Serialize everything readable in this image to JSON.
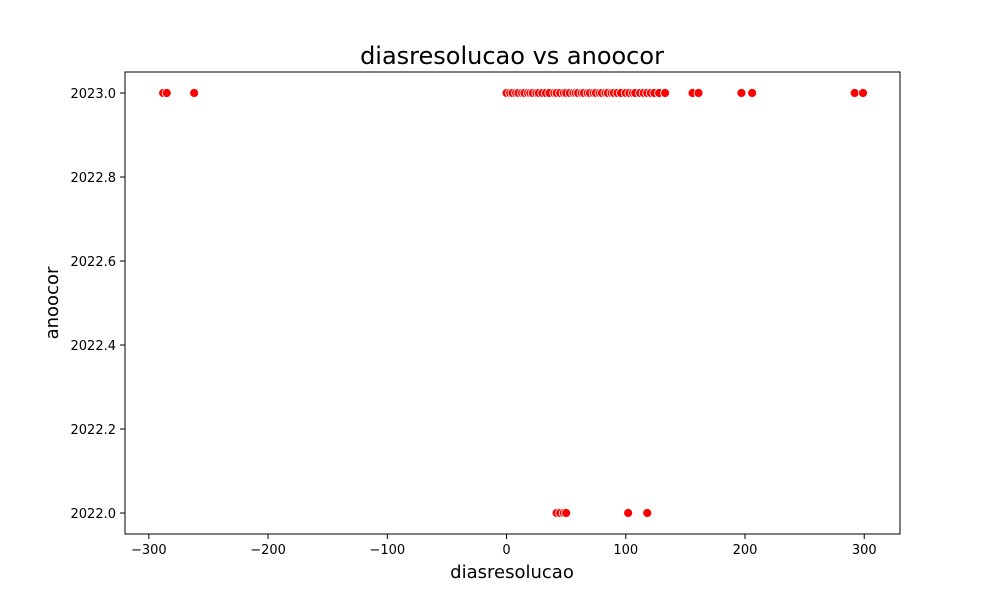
{
  "chart_data": {
    "type": "scatter",
    "title": "diasresolucao vs anoocor",
    "xlabel": "diasresolucao",
    "ylabel": "anoocor",
    "xlim": [
      -320,
      330
    ],
    "ylim": [
      1999.97,
      2023.05
    ],
    "xticks": [
      -300,
      -200,
      -100,
      0,
      100,
      200,
      300
    ],
    "xtick_labels": [
      "−300",
      "−200",
      "−100",
      "0",
      "100",
      "200",
      "300"
    ],
    "yticks": [
      2022.0,
      2022.2,
      2022.4,
      2022.6,
      2022.8,
      2023.0
    ],
    "ytick_labels": [
      "2022.0",
      "2022.2",
      "2022.4",
      "2022.6",
      "2022.8",
      "2023.0"
    ],
    "ylim_display": [
      2021.95,
      2023.05
    ],
    "grid": false,
    "marker_color": "#ff0000",
    "marker_edge": "#ffffff",
    "series": [
      {
        "x": [
          -288,
          -285,
          -262,
          0,
          3,
          5,
          8,
          10,
          13,
          15,
          18,
          20,
          22,
          25,
          27,
          30,
          33,
          36,
          40,
          42,
          45,
          48,
          50,
          53,
          56,
          58,
          60,
          63,
          65,
          68,
          70,
          73,
          75,
          78,
          80,
          83,
          85,
          88,
          90,
          93,
          96,
          100,
          103,
          106,
          108,
          112,
          115,
          118,
          121,
          124,
          128,
          133,
          156,
          161,
          197,
          206,
          292,
          299,
          42,
          45,
          48,
          50,
          102,
          118
        ],
        "y": [
          2023.0,
          2023.0,
          2023.0,
          2023.0,
          2023.0,
          2023.0,
          2023.0,
          2023.0,
          2023.0,
          2023.0,
          2023.0,
          2023.0,
          2023.0,
          2023.0,
          2023.0,
          2023.0,
          2023.0,
          2023.0,
          2023.0,
          2023.0,
          2023.0,
          2023.0,
          2023.0,
          2023.0,
          2023.0,
          2023.0,
          2023.0,
          2023.0,
          2023.0,
          2023.0,
          2023.0,
          2023.0,
          2023.0,
          2023.0,
          2023.0,
          2023.0,
          2023.0,
          2023.0,
          2023.0,
          2023.0,
          2023.0,
          2023.0,
          2023.0,
          2023.0,
          2023.0,
          2023.0,
          2023.0,
          2023.0,
          2023.0,
          2023.0,
          2023.0,
          2023.0,
          2023.0,
          2023.0,
          2023.0,
          2023.0,
          2023.0,
          2023.0,
          2022.0,
          2022.0,
          2022.0,
          2022.0,
          2022.0,
          2022.0
        ]
      }
    ]
  }
}
